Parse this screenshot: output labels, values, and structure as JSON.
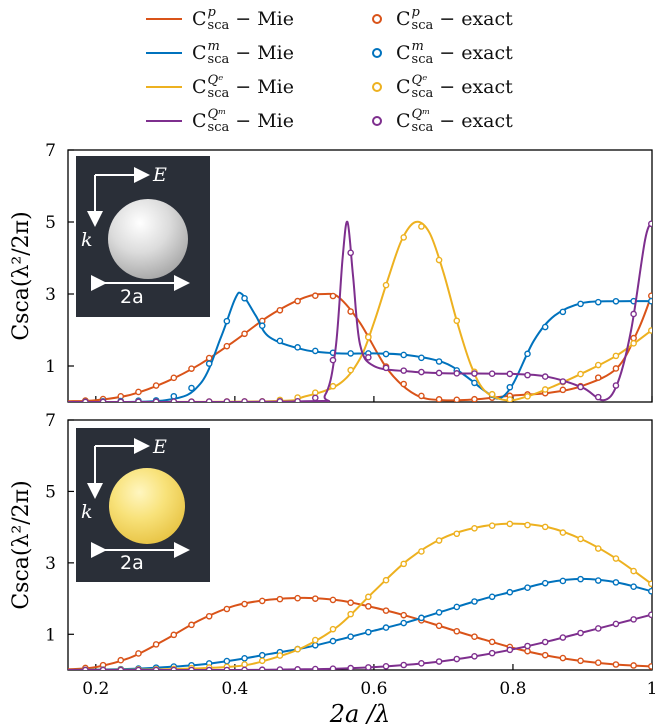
{
  "legend": [
    {
      "type": "line",
      "sup": "p",
      "text": "− Mie",
      "color": "#d95319"
    },
    {
      "type": "line",
      "sup": "m",
      "text": "− Mie",
      "color": "#0072bd"
    },
    {
      "type": "line",
      "sup": "Qᵉ",
      "text": "− Mie",
      "color": "#edb120"
    },
    {
      "type": "line",
      "sup": "Qᵐ",
      "text": "− Mie",
      "color": "#7e2f8e"
    },
    {
      "type": "marker",
      "sup": "p",
      "text": "− exact",
      "color": "#d95319"
    },
    {
      "type": "marker",
      "sup": "m",
      "text": "− exact",
      "color": "#0072bd"
    },
    {
      "type": "marker",
      "sup": "Qᵉ",
      "text": "− exact",
      "color": "#edb120"
    },
    {
      "type": "marker",
      "sup": "Qᵐ",
      "text": "− exact",
      "color": "#7e2f8e"
    }
  ],
  "legend_base": "C",
  "legend_sub": "sca",
  "insets": [
    {
      "e_label": "E",
      "k_label": "k",
      "size_label": "2a",
      "sphere_color": "#e8e8e8"
    },
    {
      "e_label": "E",
      "k_label": "k",
      "size_label": "2a",
      "sphere_color": "#f5e27a"
    }
  ],
  "chart_data": [
    {
      "type": "line",
      "xlabel": "2a /λ",
      "ylabel": "Csca(λ²/2π)",
      "xlim": [
        0.16,
        1.0
      ],
      "ylim": [
        0,
        7
      ],
      "xticks": [
        "0.2",
        "0.4",
        "0.6",
        "0.8",
        "1"
      ],
      "yticks": [
        "1",
        "3",
        "5",
        "7"
      ],
      "series": [
        {
          "name": "p",
          "color": "#d95319",
          "x": [
            0.16,
            0.2,
            0.25,
            0.3,
            0.35,
            0.4,
            0.45,
            0.5,
            0.53,
            0.55,
            0.58,
            0.62,
            0.66,
            0.7,
            0.75,
            0.8,
            0.85,
            0.9,
            0.95,
            0.98,
            1.0
          ],
          "y": [
            0.02,
            0.05,
            0.2,
            0.55,
            1.05,
            1.7,
            2.4,
            2.9,
            3.0,
            2.9,
            2.2,
            0.9,
            0.2,
            0.05,
            0.08,
            0.18,
            0.25,
            0.45,
            0.95,
            2.0,
            3.0
          ]
        },
        {
          "name": "m",
          "color": "#0072bd",
          "x": [
            0.16,
            0.3,
            0.35,
            0.38,
            0.4,
            0.41,
            0.43,
            0.45,
            0.5,
            0.55,
            0.6,
            0.65,
            0.7,
            0.73,
            0.76,
            0.78,
            0.8,
            0.83,
            0.86,
            0.9,
            0.95,
            1.0
          ],
          "y": [
            0.0,
            0.05,
            0.5,
            1.8,
            2.85,
            3.0,
            2.4,
            1.8,
            1.45,
            1.35,
            1.35,
            1.3,
            1.1,
            0.75,
            0.3,
            0.1,
            0.5,
            1.7,
            2.4,
            2.75,
            2.8,
            2.8
          ]
        },
        {
          "name": "Qe",
          "color": "#edb120",
          "x": [
            0.16,
            0.45,
            0.5,
            0.55,
            0.58,
            0.6,
            0.62,
            0.64,
            0.66,
            0.68,
            0.7,
            0.72,
            0.74,
            0.76,
            0.79,
            0.82,
            0.86,
            0.9,
            0.95,
            1.0
          ],
          "y": [
            0.0,
            0.02,
            0.15,
            0.5,
            1.2,
            2.2,
            3.4,
            4.5,
            5.0,
            4.7,
            3.6,
            2.2,
            1.0,
            0.3,
            0.05,
            0.15,
            0.45,
            0.8,
            1.3,
            2.0
          ]
        },
        {
          "name": "Qm",
          "color": "#7e2f8e",
          "x": [
            0.16,
            0.5,
            0.53,
            0.545,
            0.555,
            0.562,
            0.57,
            0.58,
            0.6,
            0.65,
            0.7,
            0.8,
            0.85,
            0.9,
            0.93,
            0.95,
            0.97,
            0.99,
            1.0
          ],
          "y": [
            0.0,
            0.02,
            0.2,
            1.5,
            4.0,
            5.0,
            3.5,
            1.6,
            1.0,
            0.85,
            0.8,
            0.78,
            0.7,
            0.4,
            0.05,
            0.5,
            2.0,
            4.5,
            5.0
          ]
        }
      ]
    },
    {
      "type": "line",
      "xlabel": "2a /λ",
      "ylabel": "Csca(λ²/2π)",
      "xlim": [
        0.16,
        1.0
      ],
      "ylim": [
        0,
        7
      ],
      "xticks": [
        "0.2",
        "0.4",
        "0.6",
        "0.8",
        "1"
      ],
      "yticks": [
        "1",
        "3",
        "5",
        "7"
      ],
      "series": [
        {
          "name": "p",
          "color": "#d95319",
          "x": [
            0.16,
            0.2,
            0.25,
            0.3,
            0.35,
            0.4,
            0.45,
            0.5,
            0.55,
            0.6,
            0.65,
            0.7,
            0.75,
            0.8,
            0.85,
            0.9,
            0.95,
            1.0
          ],
          "y": [
            0.02,
            0.08,
            0.35,
            0.85,
            1.4,
            1.8,
            1.97,
            2.02,
            1.95,
            1.75,
            1.5,
            1.2,
            0.9,
            0.62,
            0.4,
            0.25,
            0.15,
            0.1
          ]
        },
        {
          "name": "m",
          "color": "#0072bd",
          "x": [
            0.16,
            0.2,
            0.25,
            0.3,
            0.35,
            0.4,
            0.45,
            0.5,
            0.55,
            0.6,
            0.65,
            0.7,
            0.75,
            0.8,
            0.85,
            0.9,
            0.95,
            1.0
          ],
          "y": [
            0.0,
            0.01,
            0.03,
            0.08,
            0.15,
            0.28,
            0.45,
            0.62,
            0.85,
            1.1,
            1.35,
            1.65,
            1.95,
            2.2,
            2.45,
            2.55,
            2.45,
            2.2
          ]
        },
        {
          "name": "Qe",
          "color": "#edb120",
          "x": [
            0.16,
            0.3,
            0.4,
            0.45,
            0.5,
            0.55,
            0.6,
            0.65,
            0.7,
            0.75,
            0.8,
            0.85,
            0.9,
            0.95,
            1.0
          ],
          "y": [
            0.0,
            0.02,
            0.1,
            0.3,
            0.65,
            1.25,
            2.2,
            3.1,
            3.7,
            4.0,
            4.1,
            4.0,
            3.65,
            3.1,
            2.4
          ]
        },
        {
          "name": "Qm",
          "color": "#7e2f8e",
          "x": [
            0.16,
            0.3,
            0.4,
            0.5,
            0.55,
            0.6,
            0.65,
            0.7,
            0.75,
            0.8,
            0.85,
            0.9,
            0.95,
            1.0
          ],
          "y": [
            0.0,
            0.0,
            0.0,
            0.02,
            0.04,
            0.08,
            0.15,
            0.25,
            0.4,
            0.58,
            0.8,
            1.05,
            1.3,
            1.55
          ]
        }
      ]
    }
  ]
}
